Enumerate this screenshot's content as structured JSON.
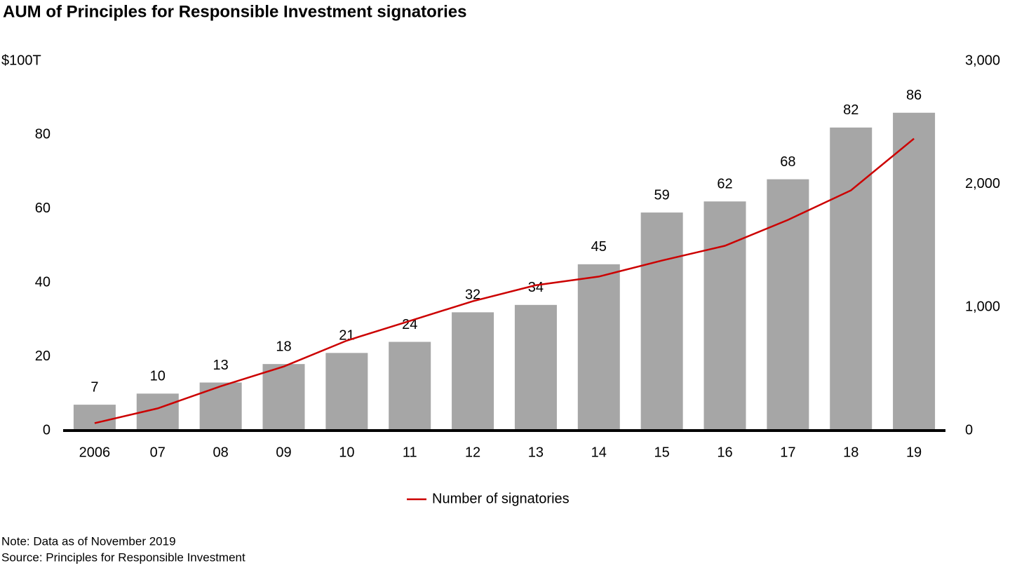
{
  "chart_data": {
    "type": "bar",
    "title": "AUM of Principles for Responsible Investment signatories",
    "categories": [
      "2006",
      "07",
      "08",
      "09",
      "10",
      "11",
      "12",
      "13",
      "14",
      "15",
      "16",
      "17",
      "18",
      "19"
    ],
    "series": [
      {
        "color": "#a6a6a6",
        "values": [
          7,
          10,
          13,
          18,
          21,
          24,
          32,
          34,
          45,
          59,
          62,
          68,
          82,
          86
        ]
      },
      {
        "name": "Number of signatories",
        "type": "line",
        "axis": "y2",
        "color": "#cc0000",
        "values": [
          60,
          180,
          360,
          520,
          730,
          890,
          1050,
          1180,
          1250,
          1380,
          1500,
          1710,
          1950,
          2370
        ]
      }
    ],
    "ylim": [
      0,
      100
    ],
    "yticks": [
      0,
      20,
      40,
      60,
      80,
      {
        "value": 100,
        "label": "$100T"
      }
    ],
    "y2lim": [
      0,
      3000
    ],
    "y2ticks": [
      0,
      {
        "value": 1000,
        "label": "1,000"
      },
      {
        "value": 2000,
        "label": "2,000"
      },
      {
        "value": 3000,
        "label": "3,000"
      }
    ],
    "legend": "bottom",
    "notes": [
      "Note: Data as of November 2019",
      "Source: Principles for Responsible Investment"
    ]
  }
}
